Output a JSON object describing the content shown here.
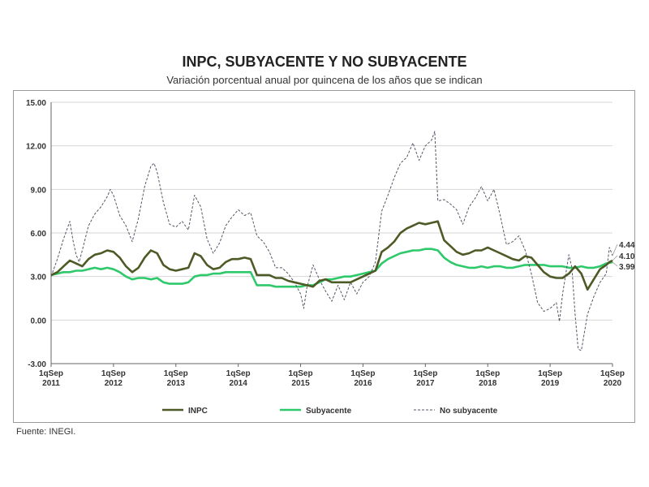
{
  "title": "INPC, SUBYACENTE Y NO SUBYACENTE",
  "subtitle": "Variación porcentual anual por quincena de los años que se indican",
  "source": "Fuente: INEGI.",
  "chart_data": {
    "type": "line",
    "y_range": [
      -3,
      15
    ],
    "y_ticks": [
      "15.00",
      "12.00",
      "9.00",
      "6.00",
      "3.00",
      "0.00",
      "-3.00"
    ],
    "x_range": [
      2011.7,
      2020.7
    ],
    "x_ticks": [
      {
        "x": 2011.7,
        "line1": "1qSep",
        "line2": "2011"
      },
      {
        "x": 2012.7,
        "line1": "1qSep",
        "line2": "2012"
      },
      {
        "x": 2013.7,
        "line1": "1qSep",
        "line2": "2013"
      },
      {
        "x": 2014.7,
        "line1": "1qSep",
        "line2": "2014"
      },
      {
        "x": 2015.7,
        "line1": "1qSep",
        "line2": "2015"
      },
      {
        "x": 2016.7,
        "line1": "1qSep",
        "line2": "2016"
      },
      {
        "x": 2017.7,
        "line1": "1qSep",
        "line2": "2017"
      },
      {
        "x": 2018.7,
        "line1": "1qSep",
        "line2": "2018"
      },
      {
        "x": 2019.7,
        "line1": "1qSep",
        "line2": "2019"
      },
      {
        "x": 2020.7,
        "line1": "1qSep",
        "line2": "2020"
      }
    ],
    "grid": "horizontal",
    "legend_position": "bottom",
    "end_labels": [
      {
        "series": "No subyacente",
        "text": "4.44"
      },
      {
        "series": "INPC",
        "text": "4.10"
      },
      {
        "series": "Subyacente",
        "text": "3.99"
      }
    ],
    "series": [
      {
        "name": "INPC",
        "color": "#4d5a25",
        "style": "solid",
        "points": [
          [
            2011.7,
            3.1
          ],
          [
            2011.8,
            3.3
          ],
          [
            2011.9,
            3.7
          ],
          [
            2012.0,
            4.1
          ],
          [
            2012.1,
            3.9
          ],
          [
            2012.2,
            3.7
          ],
          [
            2012.3,
            4.2
          ],
          [
            2012.4,
            4.5
          ],
          [
            2012.5,
            4.6
          ],
          [
            2012.6,
            4.8
          ],
          [
            2012.7,
            4.7
          ],
          [
            2012.8,
            4.3
          ],
          [
            2012.9,
            3.7
          ],
          [
            2013.0,
            3.3
          ],
          [
            2013.1,
            3.6
          ],
          [
            2013.2,
            4.3
          ],
          [
            2013.3,
            4.8
          ],
          [
            2013.4,
            4.6
          ],
          [
            2013.5,
            3.8
          ],
          [
            2013.6,
            3.5
          ],
          [
            2013.7,
            3.4
          ],
          [
            2013.8,
            3.5
          ],
          [
            2013.9,
            3.6
          ],
          [
            2014.0,
            4.6
          ],
          [
            2014.1,
            4.4
          ],
          [
            2014.2,
            3.8
          ],
          [
            2014.3,
            3.5
          ],
          [
            2014.4,
            3.6
          ],
          [
            2014.5,
            4.0
          ],
          [
            2014.6,
            4.2
          ],
          [
            2014.7,
            4.2
          ],
          [
            2014.8,
            4.3
          ],
          [
            2014.9,
            4.2
          ],
          [
            2015.0,
            3.1
          ],
          [
            2015.1,
            3.1
          ],
          [
            2015.2,
            3.1
          ],
          [
            2015.3,
            2.9
          ],
          [
            2015.4,
            2.9
          ],
          [
            2015.5,
            2.7
          ],
          [
            2015.6,
            2.6
          ],
          [
            2015.7,
            2.5
          ],
          [
            2015.8,
            2.4
          ],
          [
            2015.9,
            2.3
          ],
          [
            2016.0,
            2.7
          ],
          [
            2016.1,
            2.8
          ],
          [
            2016.2,
            2.6
          ],
          [
            2016.3,
            2.6
          ],
          [
            2016.4,
            2.6
          ],
          [
            2016.5,
            2.6
          ],
          [
            2016.6,
            2.8
          ],
          [
            2016.7,
            3.0
          ],
          [
            2016.8,
            3.2
          ],
          [
            2016.9,
            3.4
          ],
          [
            2017.0,
            4.7
          ],
          [
            2017.1,
            5.0
          ],
          [
            2017.2,
            5.4
          ],
          [
            2017.3,
            6.0
          ],
          [
            2017.4,
            6.3
          ],
          [
            2017.5,
            6.5
          ],
          [
            2017.6,
            6.7
          ],
          [
            2017.7,
            6.6
          ],
          [
            2017.8,
            6.7
          ],
          [
            2017.9,
            6.8
          ],
          [
            2018.0,
            5.5
          ],
          [
            2018.1,
            5.1
          ],
          [
            2018.2,
            4.7
          ],
          [
            2018.3,
            4.5
          ],
          [
            2018.4,
            4.6
          ],
          [
            2018.5,
            4.8
          ],
          [
            2018.6,
            4.8
          ],
          [
            2018.7,
            5.0
          ],
          [
            2018.8,
            4.8
          ],
          [
            2018.9,
            4.6
          ],
          [
            2019.0,
            4.4
          ],
          [
            2019.1,
            4.2
          ],
          [
            2019.2,
            4.1
          ],
          [
            2019.3,
            4.4
          ],
          [
            2019.4,
            4.3
          ],
          [
            2019.5,
            3.8
          ],
          [
            2019.6,
            3.3
          ],
          [
            2019.7,
            3.0
          ],
          [
            2019.8,
            2.9
          ],
          [
            2019.9,
            2.9
          ],
          [
            2020.0,
            3.2
          ],
          [
            2020.1,
            3.7
          ],
          [
            2020.2,
            3.2
          ],
          [
            2020.3,
            2.1
          ],
          [
            2020.4,
            2.8
          ],
          [
            2020.5,
            3.5
          ],
          [
            2020.6,
            3.8
          ],
          [
            2020.65,
            4.0
          ],
          [
            2020.7,
            4.1
          ]
        ]
      },
      {
        "name": "Subyacente",
        "color": "#2ec96a",
        "style": "solid",
        "points": [
          [
            2011.7,
            3.1
          ],
          [
            2011.8,
            3.2
          ],
          [
            2011.9,
            3.3
          ],
          [
            2012.0,
            3.3
          ],
          [
            2012.1,
            3.4
          ],
          [
            2012.2,
            3.4
          ],
          [
            2012.3,
            3.5
          ],
          [
            2012.4,
            3.6
          ],
          [
            2012.5,
            3.5
          ],
          [
            2012.6,
            3.6
          ],
          [
            2012.7,
            3.5
          ],
          [
            2012.8,
            3.3
          ],
          [
            2012.9,
            3.0
          ],
          [
            2013.0,
            2.8
          ],
          [
            2013.1,
            2.9
          ],
          [
            2013.2,
            2.9
          ],
          [
            2013.3,
            2.8
          ],
          [
            2013.4,
            2.9
          ],
          [
            2013.5,
            2.6
          ],
          [
            2013.6,
            2.5
          ],
          [
            2013.7,
            2.5
          ],
          [
            2013.8,
            2.5
          ],
          [
            2013.9,
            2.6
          ],
          [
            2014.0,
            3.0
          ],
          [
            2014.1,
            3.1
          ],
          [
            2014.2,
            3.1
          ],
          [
            2014.3,
            3.2
          ],
          [
            2014.4,
            3.2
          ],
          [
            2014.5,
            3.3
          ],
          [
            2014.6,
            3.3
          ],
          [
            2014.7,
            3.3
          ],
          [
            2014.8,
            3.3
          ],
          [
            2014.9,
            3.3
          ],
          [
            2015.0,
            2.4
          ],
          [
            2015.1,
            2.4
          ],
          [
            2015.2,
            2.4
          ],
          [
            2015.3,
            2.3
          ],
          [
            2015.4,
            2.3
          ],
          [
            2015.5,
            2.3
          ],
          [
            2015.6,
            2.3
          ],
          [
            2015.7,
            2.3
          ],
          [
            2015.8,
            2.4
          ],
          [
            2015.9,
            2.4
          ],
          [
            2016.0,
            2.6
          ],
          [
            2016.1,
            2.8
          ],
          [
            2016.2,
            2.8
          ],
          [
            2016.3,
            2.9
          ],
          [
            2016.4,
            3.0
          ],
          [
            2016.5,
            3.0
          ],
          [
            2016.6,
            3.1
          ],
          [
            2016.7,
            3.2
          ],
          [
            2016.8,
            3.3
          ],
          [
            2016.9,
            3.4
          ],
          [
            2017.0,
            3.9
          ],
          [
            2017.1,
            4.2
          ],
          [
            2017.2,
            4.4
          ],
          [
            2017.3,
            4.6
          ],
          [
            2017.4,
            4.7
          ],
          [
            2017.5,
            4.8
          ],
          [
            2017.6,
            4.8
          ],
          [
            2017.7,
            4.9
          ],
          [
            2017.8,
            4.9
          ],
          [
            2017.9,
            4.8
          ],
          [
            2018.0,
            4.3
          ],
          [
            2018.1,
            4.0
          ],
          [
            2018.2,
            3.8
          ],
          [
            2018.3,
            3.7
          ],
          [
            2018.4,
            3.6
          ],
          [
            2018.5,
            3.6
          ],
          [
            2018.6,
            3.7
          ],
          [
            2018.7,
            3.6
          ],
          [
            2018.8,
            3.7
          ],
          [
            2018.9,
            3.7
          ],
          [
            2019.0,
            3.6
          ],
          [
            2019.1,
            3.6
          ],
          [
            2019.2,
            3.7
          ],
          [
            2019.3,
            3.8
          ],
          [
            2019.4,
            3.8
          ],
          [
            2019.5,
            3.8
          ],
          [
            2019.6,
            3.8
          ],
          [
            2019.7,
            3.7
          ],
          [
            2019.8,
            3.7
          ],
          [
            2019.9,
            3.7
          ],
          [
            2020.0,
            3.6
          ],
          [
            2020.1,
            3.6
          ],
          [
            2020.2,
            3.7
          ],
          [
            2020.3,
            3.6
          ],
          [
            2020.4,
            3.6
          ],
          [
            2020.5,
            3.7
          ],
          [
            2020.6,
            3.9
          ],
          [
            2020.7,
            3.99
          ]
        ]
      },
      {
        "name": "No subyacente",
        "color": "#555566",
        "style": "dashed",
        "points": [
          [
            2011.7,
            3.0
          ],
          [
            2011.8,
            4.2
          ],
          [
            2011.9,
            5.6
          ],
          [
            2012.0,
            6.8
          ],
          [
            2012.05,
            5.5
          ],
          [
            2012.1,
            4.5
          ],
          [
            2012.15,
            4.0
          ],
          [
            2012.2,
            4.8
          ],
          [
            2012.3,
            6.5
          ],
          [
            2012.4,
            7.3
          ],
          [
            2012.5,
            7.8
          ],
          [
            2012.6,
            8.5
          ],
          [
            2012.65,
            9.0
          ],
          [
            2012.7,
            8.6
          ],
          [
            2012.8,
            7.2
          ],
          [
            2012.9,
            6.5
          ],
          [
            2013.0,
            5.4
          ],
          [
            2013.1,
            7.0
          ],
          [
            2013.2,
            9.2
          ],
          [
            2013.3,
            10.6
          ],
          [
            2013.35,
            10.8
          ],
          [
            2013.4,
            10.2
          ],
          [
            2013.5,
            8.1
          ],
          [
            2013.6,
            6.6
          ],
          [
            2013.7,
            6.4
          ],
          [
            2013.8,
            6.8
          ],
          [
            2013.9,
            6.2
          ],
          [
            2014.0,
            8.6
          ],
          [
            2014.1,
            7.8
          ],
          [
            2014.2,
            5.6
          ],
          [
            2014.3,
            4.6
          ],
          [
            2014.4,
            5.3
          ],
          [
            2014.5,
            6.5
          ],
          [
            2014.6,
            7.1
          ],
          [
            2014.7,
            7.6
          ],
          [
            2014.8,
            7.2
          ],
          [
            2014.9,
            7.4
          ],
          [
            2015.0,
            5.8
          ],
          [
            2015.1,
            5.4
          ],
          [
            2015.2,
            4.7
          ],
          [
            2015.3,
            3.6
          ],
          [
            2015.4,
            3.6
          ],
          [
            2015.5,
            3.2
          ],
          [
            2015.6,
            2.6
          ],
          [
            2015.7,
            1.8
          ],
          [
            2015.75,
            0.8
          ],
          [
            2015.8,
            2.2
          ],
          [
            2015.9,
            3.8
          ],
          [
            2016.0,
            2.8
          ],
          [
            2016.1,
            2.0
          ],
          [
            2016.2,
            1.3
          ],
          [
            2016.3,
            2.4
          ],
          [
            2016.4,
            1.4
          ],
          [
            2016.5,
            2.6
          ],
          [
            2016.6,
            1.8
          ],
          [
            2016.7,
            2.6
          ],
          [
            2016.8,
            3.0
          ],
          [
            2016.9,
            4.0
          ],
          [
            2017.0,
            7.5
          ],
          [
            2017.1,
            8.6
          ],
          [
            2017.2,
            9.8
          ],
          [
            2017.3,
            10.8
          ],
          [
            2017.4,
            11.2
          ],
          [
            2017.5,
            12.2
          ],
          [
            2017.6,
            11.0
          ],
          [
            2017.7,
            12.0
          ],
          [
            2017.8,
            12.4
          ],
          [
            2017.85,
            13.0
          ],
          [
            2017.9,
            8.2
          ],
          [
            2018.0,
            8.3
          ],
          [
            2018.1,
            8.0
          ],
          [
            2018.2,
            7.6
          ],
          [
            2018.3,
            6.6
          ],
          [
            2018.4,
            7.8
          ],
          [
            2018.5,
            8.4
          ],
          [
            2018.6,
            9.2
          ],
          [
            2018.7,
            8.2
          ],
          [
            2018.8,
            9.0
          ],
          [
            2018.9,
            7.2
          ],
          [
            2019.0,
            5.2
          ],
          [
            2019.1,
            5.4
          ],
          [
            2019.2,
            5.8
          ],
          [
            2019.3,
            4.8
          ],
          [
            2019.4,
            3.2
          ],
          [
            2019.5,
            1.2
          ],
          [
            2019.6,
            0.6
          ],
          [
            2019.7,
            0.8
          ],
          [
            2019.8,
            1.2
          ],
          [
            2019.85,
            -0.1
          ],
          [
            2019.9,
            1.8
          ],
          [
            2020.0,
            4.5
          ],
          [
            2020.05,
            3.6
          ],
          [
            2020.1,
            0.4
          ],
          [
            2020.15,
            -2.0
          ],
          [
            2020.2,
            -2.1
          ],
          [
            2020.3,
            0.4
          ],
          [
            2020.4,
            1.6
          ],
          [
            2020.5,
            2.6
          ],
          [
            2020.6,
            3.2
          ],
          [
            2020.65,
            5.0
          ],
          [
            2020.7,
            4.44
          ]
        ]
      }
    ]
  }
}
